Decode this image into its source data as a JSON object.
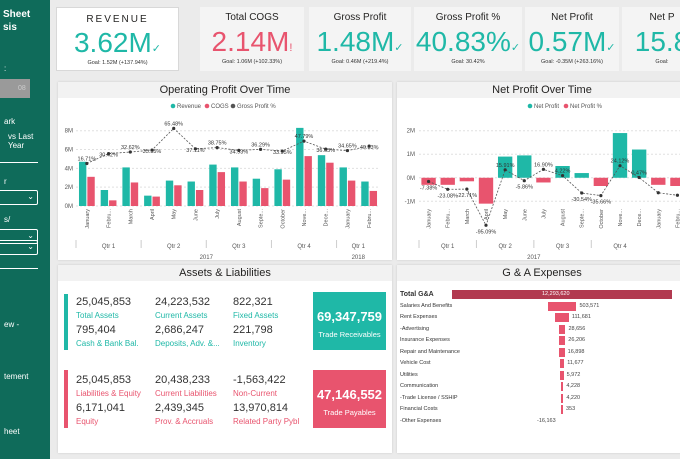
{
  "sidebar": {
    "title_line1": "Sheet",
    "title_line2": "sis",
    "filter_value": "",
    "box_text": "08",
    "mark_label": "ark",
    "compare_line1": "vs Last",
    "compare_line2": "Year",
    "label_1": "s/",
    "nav_1": "ew -",
    "nav_2": "tement",
    "nav_3": "heet"
  },
  "kpis": [
    {
      "label": "REVENUE",
      "value": "3.62M",
      "goal": "Goal: 1.52M (+137.94%)",
      "color": "#1fb8a7",
      "trend": "✓"
    },
    {
      "label": "Total COGS",
      "value": "2.14M",
      "goal": "Goal: 1.06M (+102.33%)",
      "color": "#e8546e",
      "trend": "!"
    },
    {
      "label": "Gross Profit",
      "value": "1.48M",
      "goal": "Goal: 0.46M (+219.4%)",
      "color": "#1fb8a7",
      "trend": "✓"
    },
    {
      "label": "Gross Profit %",
      "value": "40.83%",
      "goal": "Goal: 30.42%",
      "color": "#1fb8a7",
      "trend": "✓"
    },
    {
      "label": "Net Profit",
      "value": "0.57M",
      "goal": "Goal: -0.35M (+263.16%)",
      "color": "#1fb8a7",
      "trend": "✓"
    },
    {
      "label": "Net P",
      "value": "15.8",
      "goal": "Goal: ",
      "color": "#1fb8a7",
      "trend": ""
    }
  ],
  "colors": {
    "teal": "#1fb8a7",
    "pink": "#e8546e",
    "gray_line": "#555555"
  },
  "chart_data": [
    {
      "type": "bar",
      "title": "Operating Profit Over Time",
      "legend": [
        "Revenue",
        "COGS",
        "Gross Profit %"
      ],
      "categories": [
        "January",
        "Febru...",
        "March",
        "April",
        "May",
        "June",
        "July",
        "August",
        "Septe...",
        "October",
        "Nove...",
        "Dece...",
        "January",
        "Febru..."
      ],
      "quarters": [
        "Qtr 1",
        "Qtr 2",
        "Qtr 3",
        "Qtr 4",
        "Qtr 1"
      ],
      "years": [
        "2017",
        "2018"
      ],
      "yticks": [
        "0M",
        "2M",
        "4M",
        "6M",
        "8M"
      ],
      "ylim": [
        0,
        8.5
      ],
      "series": [
        {
          "name": "Revenue",
          "values": [
            4.7,
            1.7,
            4.1,
            1.1,
            2.7,
            2.6,
            4.4,
            4.1,
            2.9,
            3.9,
            8.3,
            5.4,
            4.1,
            2.6
          ]
        },
        {
          "name": "COGS",
          "values": [
            3.1,
            0.6,
            2.5,
            1.0,
            2.2,
            1.7,
            3.6,
            2.6,
            1.9,
            2.8,
            5.3,
            4.6,
            2.7,
            1.6
          ]
        },
        {
          "name": "Gross Profit %",
          "values": [
            16.71,
            30.42,
            32.62,
            35.35,
            65.48,
            37.11,
            38.75,
            34.93,
            36.29,
            33.95,
            47.79,
            36.63,
            34.65,
            40.83
          ]
        }
      ],
      "data_labels": [
        "16.71%",
        "30.42%",
        "32.62%",
        "35.35%",
        "65.48%",
        "37.11%",
        "38.75%",
        "34.93%",
        "36.29%",
        "33.95%",
        "47.79%",
        "36.63%",
        "34.65%",
        "40.83%"
      ]
    },
    {
      "type": "bar",
      "title": "Net Profit Over Time",
      "legend": [
        "Net Profit",
        "Net Profit %"
      ],
      "categories": [
        "January",
        "Febru...",
        "March",
        "April",
        "May",
        "June",
        "July",
        "August",
        "Septe...",
        "October",
        "Nove...",
        "Dece...",
        "January",
        "Febru..."
      ],
      "quarters": [
        "Qtr 1",
        "Qtr 2",
        "Qtr 3",
        "Qtr 4"
      ],
      "years": [
        "2017"
      ],
      "yticks": [
        "-1M",
        "0M",
        "1M",
        "2M"
      ],
      "ylim": [
        -1.2,
        2.2
      ],
      "series": [
        {
          "name": "Net Profit",
          "values": [
            -0.3,
            -0.3,
            -0.15,
            -1.1,
            0.9,
            0.95,
            -0.2,
            0.5,
            0.2,
            -0.35,
            1.9,
            1.2,
            -0.3,
            -0.35
          ]
        },
        {
          "name": "Net Profit %",
          "values": [
            -7.38,
            -23.08,
            -22.71,
            -95.09,
            15.91,
            -5.86,
            16.9,
            4.22,
            -30.54,
            -35.66,
            24.12,
            0.47,
            -30.0,
            -35.0
          ]
        }
      ],
      "data_labels": [
        "-7.38%",
        "-23.08%",
        "-22.71%",
        "-95.09%",
        "15.91%",
        "-5.86%",
        "16.90%",
        "4.22%",
        "-30.54%",
        "-35.66%",
        "24.12%",
        "0.47%",
        "",
        ""
      ]
    },
    {
      "type": "bar",
      "title": "G & A Expenses",
      "categories": [
        "Total G&A",
        "Salaries And Benefits",
        "Rent Expenses",
        "-Advertising",
        "Insurance Expenses",
        "Repair and Maintenance",
        "Vehicle Cost",
        "Utilities",
        "Communication",
        "-Trade License / SSHIP",
        "Financial Costs",
        "-Other Expenses"
      ],
      "values": [
        12293620,
        503571,
        111681,
        28656,
        26206,
        16898,
        11677,
        5972,
        4228,
        4220,
        353,
        -16163
      ],
      "value_labels": [
        "12,293,620",
        "503,571",
        "111,681",
        "28,656",
        "26,206",
        "16,898",
        "11,677",
        "5,972",
        "4,228",
        "4,220",
        "353",
        "-16,163"
      ]
    }
  ],
  "assets": {
    "title": "Assets & Liabilities",
    "row1": [
      {
        "value": "25,045,853",
        "label": "Total Assets"
      },
      {
        "value": "24,223,532",
        "label": "Current Assets"
      },
      {
        "value": "822,321",
        "label": "Fixed Assets"
      }
    ],
    "row2": [
      {
        "value": "795,404",
        "label": "Cash & Bank Bal."
      },
      {
        "value": "2,686,247",
        "label": "Deposits, Adv. &..."
      },
      {
        "value": "221,798",
        "label": "Inventory"
      }
    ],
    "row3": [
      {
        "value": "25,045,853",
        "label": "Liabilities & Equity"
      },
      {
        "value": "20,438,233",
        "label": "Current Liabilities"
      },
      {
        "value": "-1,563,422",
        "label": "Non-Current"
      }
    ],
    "row4": [
      {
        "value": "6,171,041",
        "label": "Equity"
      },
      {
        "value": "2,439,345",
        "label": "Prov. & Accruals"
      },
      {
        "value": "13,970,814",
        "label": "Related Party Pybl"
      }
    ],
    "card1": {
      "value": "69,347,759",
      "label": "Trade Receivables"
    },
    "card2": {
      "value": "47,146,552",
      "label": "Trade Payables"
    }
  }
}
